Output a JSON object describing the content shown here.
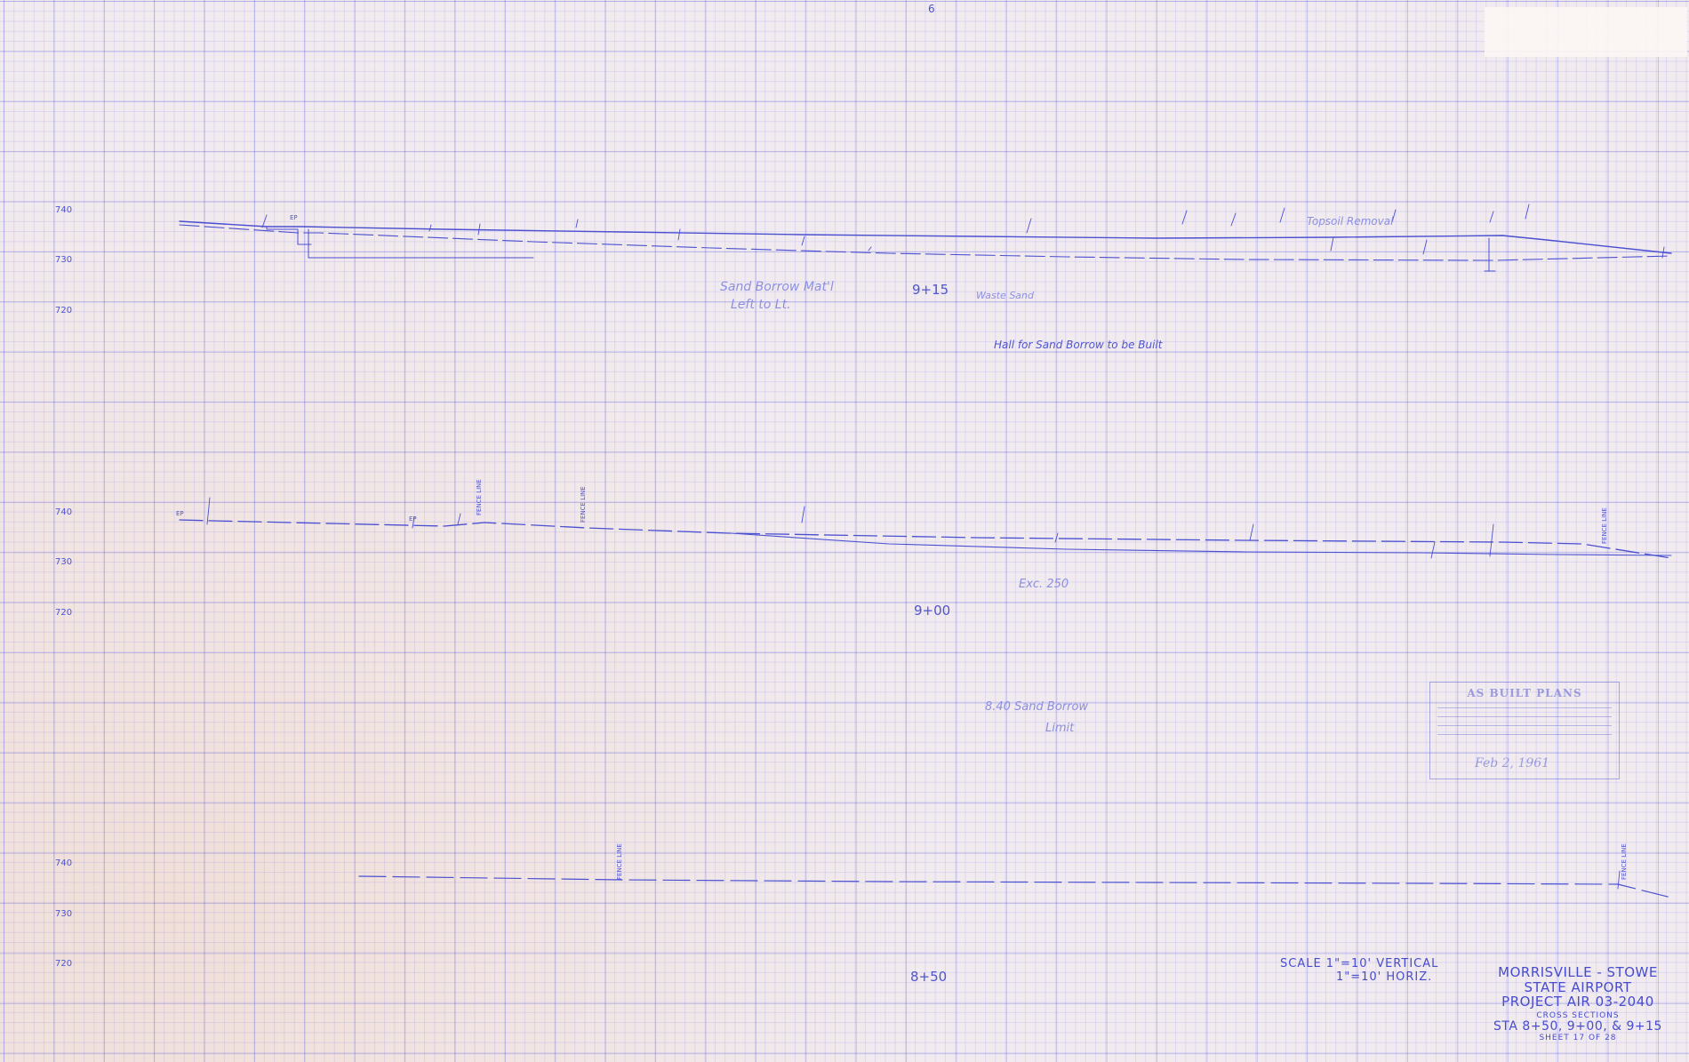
{
  "sheet": {
    "title_line1": "MORRISVILLE - STOWE",
    "title_line2": "STATE AIRPORT",
    "project": "PROJECT AIR 03-2040",
    "subject": "CROSS SECTIONS",
    "stations": "STA 8+50, 9+00, & 9+15",
    "sheet_number": "SHEET 17 OF 28",
    "top_mark": "6"
  },
  "scale": {
    "vertical": "SCALE 1\"=10' VERTICAL",
    "horizontal": "1\"=10' HORIZ."
  },
  "sections": [
    {
      "station": "9+15",
      "elevations": [
        "740",
        "730",
        "720"
      ],
      "notes": [
        "Sand Borrow Mat'l",
        "Left to Lt.",
        "Waste Sand",
        "Hall for Sand Borrow to be Built",
        "Topsoil Removal",
        "EP"
      ]
    },
    {
      "station": "9+00",
      "elevations": [
        "740",
        "730",
        "720"
      ],
      "notes": [
        "FENCE LINE",
        "FENCE LINE",
        "FENCE LINE",
        "Exc. 250",
        "EP",
        "EP"
      ]
    },
    {
      "station": "8+50",
      "elevations": [
        "740",
        "730",
        "720"
      ],
      "notes": [
        "FENCE LINE",
        "FENCE LINE",
        "8.40 Sand Borrow",
        "Limit"
      ]
    }
  ],
  "stamp": {
    "title": "AS BUILT PLANS",
    "date": "Feb 2, 1961"
  }
}
